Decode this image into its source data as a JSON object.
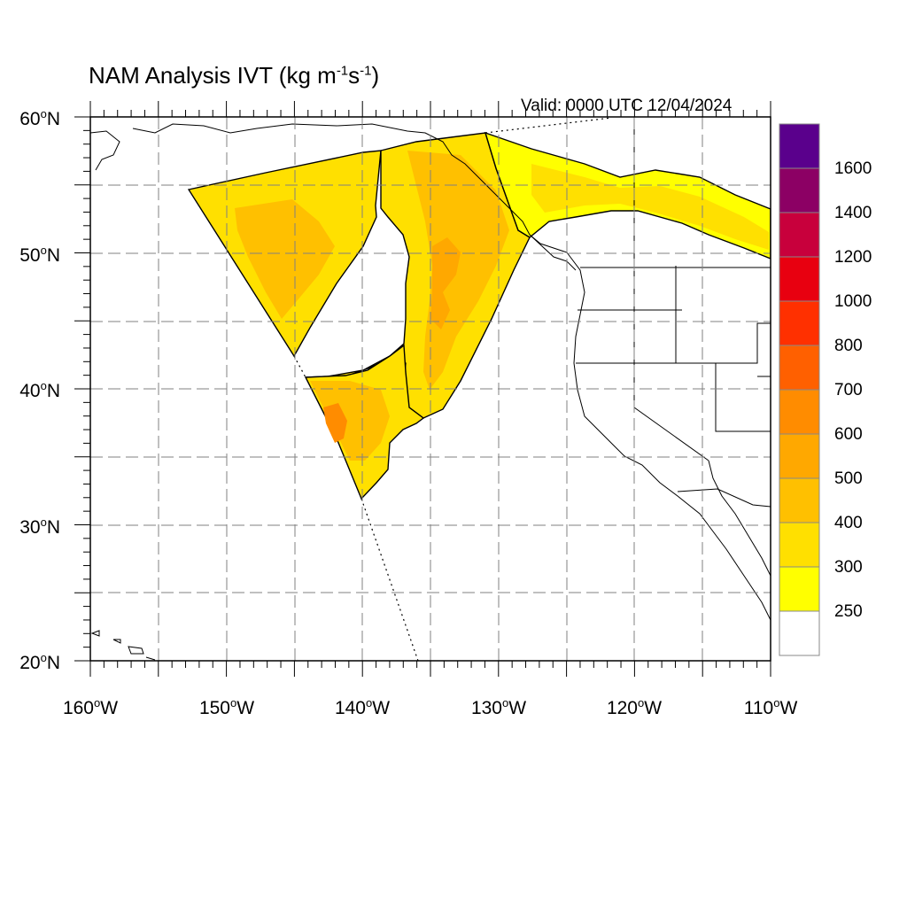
{
  "title": {
    "main": "NAM Analysis IVT (kg m",
    "sup1": "-1",
    "mid": "s",
    "sup2": "-1",
    "end": ")"
  },
  "valid_text": "Valid: 0000 UTC 12/04/2024",
  "lat_labels": [
    {
      "value": "60",
      "unit": "o",
      "hemi": "N"
    },
    {
      "value": "50",
      "unit": "o",
      "hemi": "N"
    },
    {
      "value": "40",
      "unit": "o",
      "hemi": "N"
    },
    {
      "value": "30",
      "unit": "o",
      "hemi": "N"
    },
    {
      "value": "20",
      "unit": "o",
      "hemi": "N"
    }
  ],
  "lon_labels": [
    {
      "value": "160",
      "unit": "o",
      "hemi": "W"
    },
    {
      "value": "150",
      "unit": "o",
      "hemi": "W"
    },
    {
      "value": "140",
      "unit": "o",
      "hemi": "W"
    },
    {
      "value": "130",
      "unit": "o",
      "hemi": "W"
    },
    {
      "value": "120",
      "unit": "o",
      "hemi": "W"
    },
    {
      "value": "110",
      "unit": "o",
      "hemi": "W"
    }
  ],
  "map_extent": {
    "lon_min": -160,
    "lon_max": -110,
    "lat_min": 20,
    "lat_max": 60
  },
  "colorbar": {
    "levels": [
      "250",
      "300",
      "400",
      "500",
      "600",
      "700",
      "800",
      "1000",
      "1200",
      "1400",
      "1600"
    ],
    "colors": [
      "#ffffff",
      "#ffff00",
      "#ffe000",
      "#ffc000",
      "#ffa800",
      "#ff8c00",
      "#ff6000",
      "#ff3000",
      "#e80010",
      "#c8003c",
      "#8c0064",
      "#5a008c"
    ]
  },
  "colors": {
    "grid": "#808080",
    "coast": "#000000",
    "border": "#000000"
  }
}
